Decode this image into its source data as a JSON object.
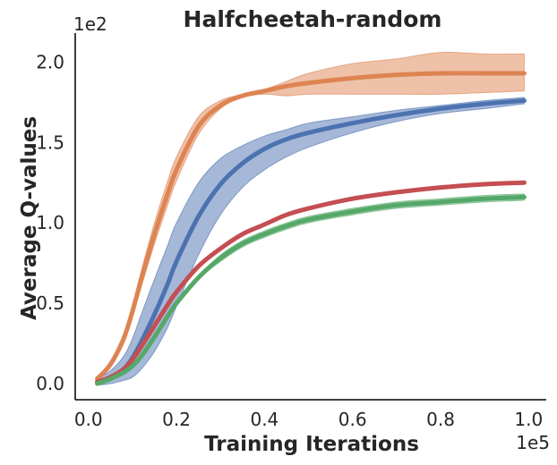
{
  "chart_data": {
    "type": "line",
    "title": "Halfcheetah-random",
    "xlabel": "Training Iterations",
    "ylabel": "Average Q-values",
    "x_scale_label": "1e5",
    "y_scale_label": "1e2",
    "xlim": [
      -0.03,
      1.04
    ],
    "ylim": [
      -0.1,
      2.18
    ],
    "x_ticks": [
      0.0,
      0.2,
      0.4,
      0.6,
      0.8,
      1.0
    ],
    "x_tick_labels": [
      "0.0",
      "0.2",
      "0.4",
      "0.6",
      "0.8",
      "1.0"
    ],
    "y_ticks": [
      0.0,
      0.5,
      1.0,
      1.5,
      2.0
    ],
    "y_tick_labels": [
      "0.0",
      "0.5",
      "1.0",
      "1.5",
      "2.0"
    ],
    "grid": false,
    "x": [
      0.02,
      0.05,
      0.08,
      0.1,
      0.12,
      0.15,
      0.18,
      0.2,
      0.25,
      0.3,
      0.35,
      0.4,
      0.45,
      0.5,
      0.6,
      0.7,
      0.8,
      0.9,
      0.99
    ],
    "series": [
      {
        "name": "orange",
        "color": "#dd8452",
        "values": [
          0.03,
          0.12,
          0.28,
          0.45,
          0.65,
          0.93,
          1.18,
          1.33,
          1.6,
          1.73,
          1.79,
          1.82,
          1.85,
          1.87,
          1.9,
          1.92,
          1.93,
          1.93,
          1.93
        ],
        "lower": [
          0.02,
          0.1,
          0.25,
          0.41,
          0.6,
          0.87,
          1.11,
          1.26,
          1.55,
          1.71,
          1.78,
          1.8,
          1.79,
          1.8,
          1.8,
          1.8,
          1.8,
          1.81,
          1.82
        ],
        "upper": [
          0.04,
          0.14,
          0.3,
          0.48,
          0.7,
          1.0,
          1.26,
          1.41,
          1.66,
          1.76,
          1.8,
          1.83,
          1.88,
          1.93,
          1.99,
          2.02,
          2.06,
          2.05,
          2.05
        ]
      },
      {
        "name": "blue",
        "color": "#4c72b0",
        "values": [
          0.01,
          0.04,
          0.09,
          0.16,
          0.26,
          0.43,
          0.62,
          0.76,
          1.04,
          1.24,
          1.37,
          1.46,
          1.52,
          1.56,
          1.62,
          1.67,
          1.71,
          1.74,
          1.76
        ],
        "lower": [
          -0.01,
          0.0,
          0.02,
          0.04,
          0.09,
          0.2,
          0.35,
          0.48,
          0.8,
          1.05,
          1.22,
          1.33,
          1.41,
          1.47,
          1.56,
          1.63,
          1.68,
          1.71,
          1.74
        ],
        "upper": [
          0.03,
          0.08,
          0.17,
          0.28,
          0.43,
          0.65,
          0.86,
          1.0,
          1.25,
          1.4,
          1.48,
          1.54,
          1.58,
          1.62,
          1.66,
          1.7,
          1.73,
          1.76,
          1.78
        ]
      },
      {
        "name": "red",
        "color": "#c44e52",
        "values": [
          0.01,
          0.04,
          0.09,
          0.15,
          0.23,
          0.36,
          0.49,
          0.57,
          0.73,
          0.84,
          0.93,
          0.99,
          1.05,
          1.09,
          1.15,
          1.19,
          1.22,
          1.24,
          1.25
        ],
        "lower": [
          0.0,
          0.03,
          0.08,
          0.14,
          0.22,
          0.35,
          0.48,
          0.56,
          0.72,
          0.83,
          0.92,
          0.98,
          1.04,
          1.08,
          1.14,
          1.18,
          1.21,
          1.23,
          1.24
        ],
        "upper": [
          0.02,
          0.05,
          0.1,
          0.16,
          0.24,
          0.37,
          0.5,
          0.58,
          0.74,
          0.85,
          0.94,
          1.0,
          1.06,
          1.1,
          1.16,
          1.2,
          1.23,
          1.25,
          1.26
        ]
      },
      {
        "name": "green",
        "color": "#55a868",
        "values": [
          0.0,
          0.03,
          0.07,
          0.11,
          0.17,
          0.29,
          0.42,
          0.5,
          0.66,
          0.78,
          0.87,
          0.93,
          0.98,
          1.02,
          1.07,
          1.11,
          1.13,
          1.15,
          1.16
        ],
        "lower": [
          -0.01,
          0.02,
          0.06,
          0.1,
          0.16,
          0.28,
          0.41,
          0.49,
          0.65,
          0.76,
          0.85,
          0.91,
          0.96,
          1.0,
          1.05,
          1.09,
          1.11,
          1.13,
          1.14
        ],
        "upper": [
          0.01,
          0.04,
          0.08,
          0.12,
          0.18,
          0.3,
          0.43,
          0.51,
          0.67,
          0.8,
          0.89,
          0.95,
          1.0,
          1.04,
          1.09,
          1.13,
          1.15,
          1.17,
          1.18
        ]
      }
    ]
  }
}
